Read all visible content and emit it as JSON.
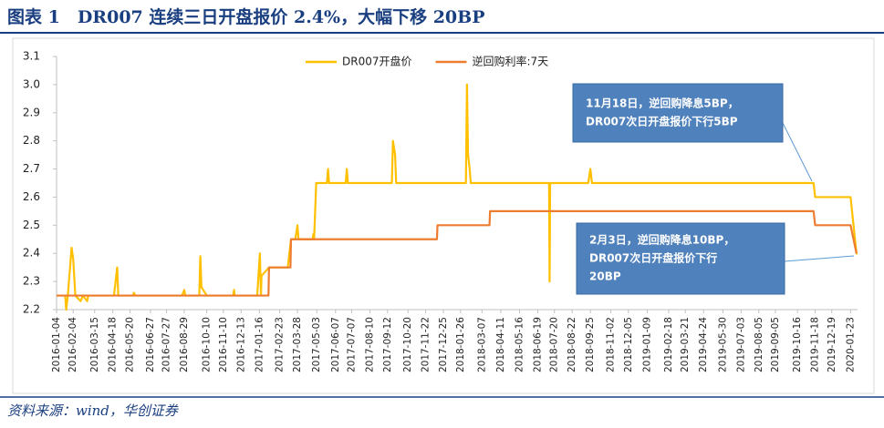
{
  "title": "图表 1　DR007 连续三日开盘报价 2.4%，大幅下移 20BP",
  "source": "资料来源：wind，华创证券",
  "chart_data": {
    "type": "line",
    "legend": "top",
    "grid": false,
    "ylim": [
      2.2,
      3.1
    ],
    "yticks": [
      2.2,
      2.3,
      2.4,
      2.5,
      2.6,
      2.7,
      2.8,
      2.9,
      {
        "value": 3,
        "label": "3.0"
      },
      3.1
    ],
    "xlim": [
      "2016-01-04",
      "2020-02-05"
    ],
    "xticks": [
      "2016-01-04",
      "2016-02-04",
      "2016-03-15",
      "2016-04-18",
      "2016-05-20",
      "2016-06-27",
      "2016-07-27",
      "2016-08-29",
      "2016-10-10",
      "2016-11-10",
      "2016-12-13",
      "2017-01-16",
      "2017-02-23",
      "2017-03-28",
      "2017-05-03",
      "2017-06-07",
      "2017-07-07",
      "2017-08-10",
      "2017-09-12",
      "2017-10-20",
      "2017-11-22",
      "2017-12-25",
      "2018-01-26",
      "2018-03-07",
      "2018-04-11",
      "2018-05-16",
      "2018-06-19",
      "2018-07-20",
      "2018-08-22",
      "2018-09-25",
      "2018-11-02",
      "2018-12-05",
      "2019-01-09",
      "2019-02-18",
      "2019-03-21",
      "2019-04-24",
      "2019-05-30",
      "2019-07-03",
      "2019-08-05",
      "2019-09-05",
      "2019-10-16",
      "2019-11-18",
      "2019-12-19",
      "2020-01-23"
    ],
    "series": [
      {
        "name": "DR007开盘价",
        "color": "#ffc000",
        "x": [
          "2016-01-04",
          "2016-01-20",
          "2016-01-22",
          "2016-01-25",
          "2016-02-01",
          "2016-02-04",
          "2016-02-08",
          "2016-02-18",
          "2016-02-22",
          "2016-03-01",
          "2016-03-03",
          "2016-04-20",
          "2016-04-26",
          "2016-04-28",
          "2016-05-26",
          "2016-05-27",
          "2016-05-30",
          "2016-08-25",
          "2016-08-29",
          "2016-08-31",
          "2016-09-26",
          "2016-09-28",
          "2016-09-30",
          "2016-10-10",
          "2016-11-28",
          "2016-11-30",
          "2016-12-01",
          "2017-01-12",
          "2017-01-17",
          "2017-01-19",
          "2017-01-20",
          "2017-02-03",
          "2017-03-10",
          "2017-03-16",
          "2017-03-24",
          "2017-03-28",
          "2017-03-30",
          "2017-04-25",
          "2017-04-27",
          "2017-04-28",
          "2017-05-02",
          "2017-05-22",
          "2017-05-24",
          "2017-05-26",
          "2017-06-26",
          "2017-06-28",
          "2017-06-30",
          "2017-09-20",
          "2017-09-22",
          "2017-09-26",
          "2017-09-28",
          "2018-02-05",
          "2018-02-07",
          "2018-02-09",
          "2018-02-12",
          "2018-02-14",
          "2018-07-10",
          "2018-07-11",
          "2018-07-12",
          "2018-09-21",
          "2018-09-25",
          "2018-09-28",
          "2019-11-15",
          "2019-11-18",
          "2020-01-23",
          "2020-02-03",
          "2020-02-05"
        ],
        "values": [
          2.25,
          2.25,
          2.2,
          2.25,
          2.42,
          2.38,
          2.25,
          2.23,
          2.25,
          2.23,
          2.25,
          2.25,
          2.35,
          2.25,
          2.25,
          2.26,
          2.25,
          2.25,
          2.27,
          2.25,
          2.25,
          2.39,
          2.28,
          2.25,
          2.25,
          2.27,
          2.25,
          2.25,
          2.4,
          2.25,
          2.32,
          2.35,
          2.35,
          2.45,
          2.45,
          2.5,
          2.45,
          2.45,
          2.47,
          2.45,
          2.65,
          2.65,
          2.7,
          2.65,
          2.65,
          2.7,
          2.65,
          2.65,
          2.8,
          2.75,
          2.65,
          2.65,
          3.0,
          2.75,
          2.7,
          2.65,
          2.65,
          2.3,
          2.65,
          2.65,
          2.7,
          2.65,
          2.65,
          2.6,
          2.6,
          2.4,
          2.4
        ]
      },
      {
        "name": "逆回购利率:7天",
        "color": "#ed7d31",
        "x": [
          "2016-01-04",
          "2017-02-02",
          "2017-02-03",
          "2017-03-15",
          "2017-03-16",
          "2017-12-13",
          "2017-12-14",
          "2018-03-21",
          "2018-03-22",
          "2019-11-15",
          "2019-11-18",
          "2020-01-23",
          "2020-02-03"
        ],
        "values": [
          2.25,
          2.25,
          2.35,
          2.35,
          2.45,
          2.45,
          2.5,
          2.5,
          2.55,
          2.55,
          2.5,
          2.5,
          2.4
        ]
      }
    ],
    "annotations": [
      {
        "lines": [
          "11月18日，逆回购降息5BP，",
          "DR007次日开盘报价下行5BP"
        ]
      },
      {
        "lines": [
          "2月3日，逆回购降息10BP，",
          "DR007次日开盘报价下行",
          "20BP"
        ]
      }
    ]
  }
}
